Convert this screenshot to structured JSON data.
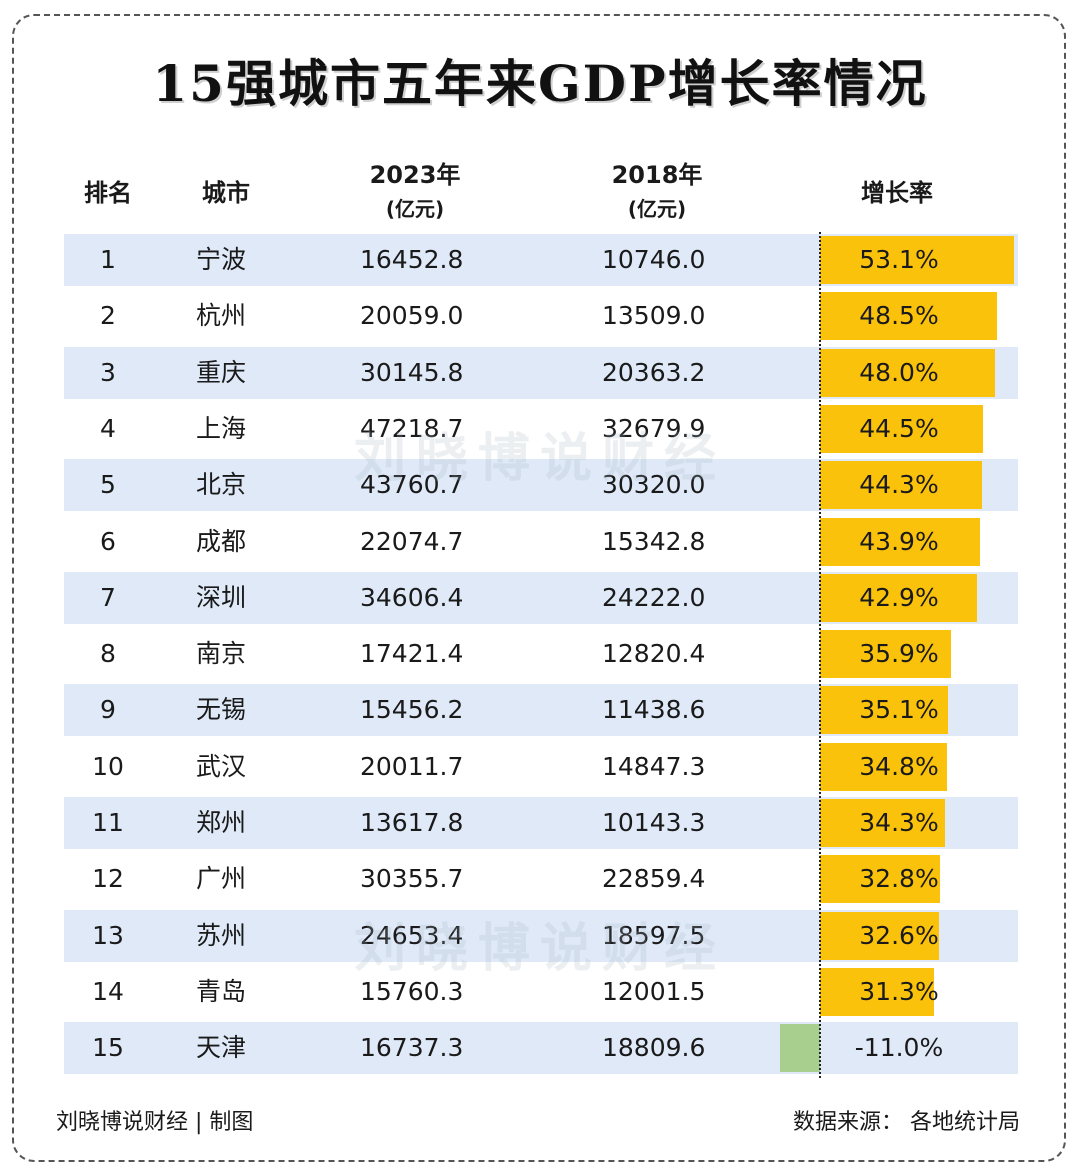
{
  "title": "15强城市五年来GDP增长率情况",
  "headers": {
    "rank": "排名",
    "city": "城市",
    "y2023": "2023年",
    "y2018": "2018年",
    "unit": "(亿元)",
    "rate": "增长率"
  },
  "watermark": "刘晓博说财经",
  "footer": {
    "left": "刘晓博说财经 | 制图",
    "right": "数据来源： 各地统计局"
  },
  "colors": {
    "positive_bar": "#fbc20b",
    "negative_bar": "#a9cf8e",
    "row_stripe": "#dfe9f8"
  },
  "chart_data": {
    "type": "table",
    "title": "15强城市五年来GDP增长率情况",
    "columns": [
      "排名",
      "城市",
      "2023年(亿元)",
      "2018年(亿元)",
      "增长率"
    ],
    "rows": [
      {
        "rank": "1",
        "city": "宁波",
        "gdp2023": "16452.8",
        "gdp2018": "10746.0",
        "rate_label": "53.1%",
        "rate": 53.1
      },
      {
        "rank": "2",
        "city": "杭州",
        "gdp2023": "20059.0",
        "gdp2018": "13509.0",
        "rate_label": "48.5%",
        "rate": 48.5
      },
      {
        "rank": "3",
        "city": "重庆",
        "gdp2023": "30145.8",
        "gdp2018": "20363.2",
        "rate_label": "48.0%",
        "rate": 48.0
      },
      {
        "rank": "4",
        "city": "上海",
        "gdp2023": "47218.7",
        "gdp2018": "32679.9",
        "rate_label": "44.5%",
        "rate": 44.5
      },
      {
        "rank": "5",
        "city": "北京",
        "gdp2023": "43760.7",
        "gdp2018": "30320.0",
        "rate_label": "44.3%",
        "rate": 44.3
      },
      {
        "rank": "6",
        "city": "成都",
        "gdp2023": "22074.7",
        "gdp2018": "15342.8",
        "rate_label": "43.9%",
        "rate": 43.9
      },
      {
        "rank": "7",
        "city": "深圳",
        "gdp2023": "34606.4",
        "gdp2018": "24222.0",
        "rate_label": "42.9%",
        "rate": 42.9
      },
      {
        "rank": "8",
        "city": "南京",
        "gdp2023": "17421.4",
        "gdp2018": "12820.4",
        "rate_label": "35.9%",
        "rate": 35.9
      },
      {
        "rank": "9",
        "city": "无锡",
        "gdp2023": "15456.2",
        "gdp2018": "11438.6",
        "rate_label": "35.1%",
        "rate": 35.1
      },
      {
        "rank": "10",
        "city": "武汉",
        "gdp2023": "20011.7",
        "gdp2018": "14847.3",
        "rate_label": "34.8%",
        "rate": 34.8
      },
      {
        "rank": "11",
        "city": "郑州",
        "gdp2023": "13617.8",
        "gdp2018": "10143.3",
        "rate_label": "34.3%",
        "rate": 34.3
      },
      {
        "rank": "12",
        "city": "广州",
        "gdp2023": "30355.7",
        "gdp2018": "22859.4",
        "rate_label": "32.8%",
        "rate": 32.8
      },
      {
        "rank": "13",
        "city": "苏州",
        "gdp2023": "24653.4",
        "gdp2018": "18597.5",
        "rate_label": "32.6%",
        "rate": 32.6
      },
      {
        "rank": "14",
        "city": "青岛",
        "gdp2023": "15760.3",
        "gdp2018": "12001.5",
        "rate_label": "31.3%",
        "rate": 31.3
      },
      {
        "rank": "15",
        "city": "天津",
        "gdp2023": "16737.3",
        "gdp2018": "18809.6",
        "rate_label": "-11.0%",
        "rate": -11.0
      }
    ]
  }
}
